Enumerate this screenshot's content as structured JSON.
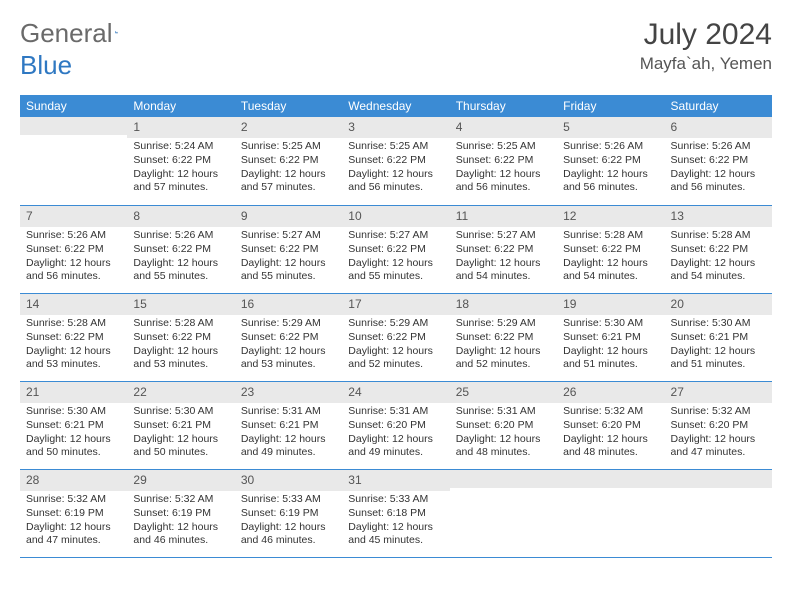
{
  "brand": {
    "part1": "General",
    "part2": "Blue"
  },
  "title": "July 2024",
  "location": "Mayfa`ah, Yemen",
  "colors": {
    "header_bg": "#3b8bd4",
    "header_text": "#ffffff",
    "daynum_bg": "#e9e9e9",
    "border": "#3b8bd4",
    "brand_gray": "#6a6a6a",
    "brand_blue": "#2f78c2"
  },
  "weekdays": [
    "Sunday",
    "Monday",
    "Tuesday",
    "Wednesday",
    "Thursday",
    "Friday",
    "Saturday"
  ],
  "start_offset": 1,
  "days": [
    {
      "n": 1,
      "sunrise": "5:24 AM",
      "sunset": "6:22 PM",
      "daylight": "12 hours and 57 minutes."
    },
    {
      "n": 2,
      "sunrise": "5:25 AM",
      "sunset": "6:22 PM",
      "daylight": "12 hours and 57 minutes."
    },
    {
      "n": 3,
      "sunrise": "5:25 AM",
      "sunset": "6:22 PM",
      "daylight": "12 hours and 56 minutes."
    },
    {
      "n": 4,
      "sunrise": "5:25 AM",
      "sunset": "6:22 PM",
      "daylight": "12 hours and 56 minutes."
    },
    {
      "n": 5,
      "sunrise": "5:26 AM",
      "sunset": "6:22 PM",
      "daylight": "12 hours and 56 minutes."
    },
    {
      "n": 6,
      "sunrise": "5:26 AM",
      "sunset": "6:22 PM",
      "daylight": "12 hours and 56 minutes."
    },
    {
      "n": 7,
      "sunrise": "5:26 AM",
      "sunset": "6:22 PM",
      "daylight": "12 hours and 56 minutes."
    },
    {
      "n": 8,
      "sunrise": "5:26 AM",
      "sunset": "6:22 PM",
      "daylight": "12 hours and 55 minutes."
    },
    {
      "n": 9,
      "sunrise": "5:27 AM",
      "sunset": "6:22 PM",
      "daylight": "12 hours and 55 minutes."
    },
    {
      "n": 10,
      "sunrise": "5:27 AM",
      "sunset": "6:22 PM",
      "daylight": "12 hours and 55 minutes."
    },
    {
      "n": 11,
      "sunrise": "5:27 AM",
      "sunset": "6:22 PM",
      "daylight": "12 hours and 54 minutes."
    },
    {
      "n": 12,
      "sunrise": "5:28 AM",
      "sunset": "6:22 PM",
      "daylight": "12 hours and 54 minutes."
    },
    {
      "n": 13,
      "sunrise": "5:28 AM",
      "sunset": "6:22 PM",
      "daylight": "12 hours and 54 minutes."
    },
    {
      "n": 14,
      "sunrise": "5:28 AM",
      "sunset": "6:22 PM",
      "daylight": "12 hours and 53 minutes."
    },
    {
      "n": 15,
      "sunrise": "5:28 AM",
      "sunset": "6:22 PM",
      "daylight": "12 hours and 53 minutes."
    },
    {
      "n": 16,
      "sunrise": "5:29 AM",
      "sunset": "6:22 PM",
      "daylight": "12 hours and 53 minutes."
    },
    {
      "n": 17,
      "sunrise": "5:29 AM",
      "sunset": "6:22 PM",
      "daylight": "12 hours and 52 minutes."
    },
    {
      "n": 18,
      "sunrise": "5:29 AM",
      "sunset": "6:22 PM",
      "daylight": "12 hours and 52 minutes."
    },
    {
      "n": 19,
      "sunrise": "5:30 AM",
      "sunset": "6:21 PM",
      "daylight": "12 hours and 51 minutes."
    },
    {
      "n": 20,
      "sunrise": "5:30 AM",
      "sunset": "6:21 PM",
      "daylight": "12 hours and 51 minutes."
    },
    {
      "n": 21,
      "sunrise": "5:30 AM",
      "sunset": "6:21 PM",
      "daylight": "12 hours and 50 minutes."
    },
    {
      "n": 22,
      "sunrise": "5:30 AM",
      "sunset": "6:21 PM",
      "daylight": "12 hours and 50 minutes."
    },
    {
      "n": 23,
      "sunrise": "5:31 AM",
      "sunset": "6:21 PM",
      "daylight": "12 hours and 49 minutes."
    },
    {
      "n": 24,
      "sunrise": "5:31 AM",
      "sunset": "6:20 PM",
      "daylight": "12 hours and 49 minutes."
    },
    {
      "n": 25,
      "sunrise": "5:31 AM",
      "sunset": "6:20 PM",
      "daylight": "12 hours and 48 minutes."
    },
    {
      "n": 26,
      "sunrise": "5:32 AM",
      "sunset": "6:20 PM",
      "daylight": "12 hours and 48 minutes."
    },
    {
      "n": 27,
      "sunrise": "5:32 AM",
      "sunset": "6:20 PM",
      "daylight": "12 hours and 47 minutes."
    },
    {
      "n": 28,
      "sunrise": "5:32 AM",
      "sunset": "6:19 PM",
      "daylight": "12 hours and 47 minutes."
    },
    {
      "n": 29,
      "sunrise": "5:32 AM",
      "sunset": "6:19 PM",
      "daylight": "12 hours and 46 minutes."
    },
    {
      "n": 30,
      "sunrise": "5:33 AM",
      "sunset": "6:19 PM",
      "daylight": "12 hours and 46 minutes."
    },
    {
      "n": 31,
      "sunrise": "5:33 AM",
      "sunset": "6:18 PM",
      "daylight": "12 hours and 45 minutes."
    }
  ],
  "labels": {
    "sunrise": "Sunrise:",
    "sunset": "Sunset:",
    "daylight": "Daylight:"
  }
}
